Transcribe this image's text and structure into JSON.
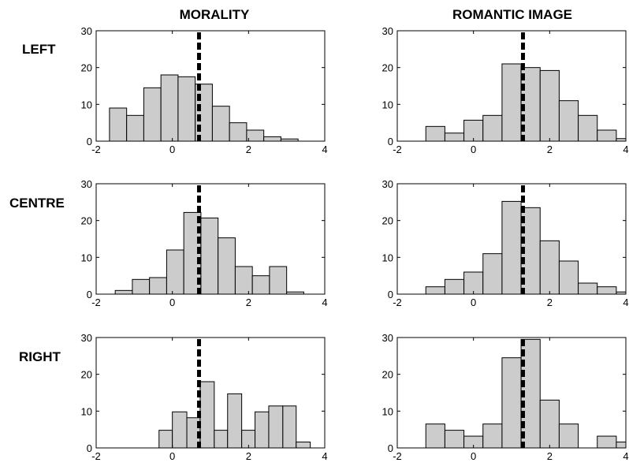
{
  "figure": {
    "column_titles": [
      "MORALITY",
      "ROMANTIC IMAGE"
    ],
    "row_labels": [
      "LEFT",
      "CENTRE",
      "RIGHT"
    ]
  },
  "colors": {
    "bar_fill": "#cccccc",
    "bar_stroke": "#000000",
    "reference_line": "#000000"
  },
  "chart_data": [
    {
      "type": "bar",
      "panel": "LEFT / MORALITY",
      "title": "",
      "xlabel": "",
      "ylabel": "",
      "xlim": [
        -2,
        4
      ],
      "ylim": [
        0,
        30
      ],
      "xticks": [
        -2,
        0,
        2,
        4
      ],
      "yticks": [
        0,
        10,
        20,
        30
      ],
      "reference_x": 0.7,
      "bins": [
        {
          "x0": -1.65,
          "x1": -1.2,
          "y": 9
        },
        {
          "x0": -1.2,
          "x1": -0.75,
          "y": 7
        },
        {
          "x0": -0.75,
          "x1": -0.3,
          "y": 14.5
        },
        {
          "x0": -0.3,
          "x1": 0.15,
          "y": 18
        },
        {
          "x0": 0.15,
          "x1": 0.6,
          "y": 17.5
        },
        {
          "x0": 0.6,
          "x1": 1.05,
          "y": 15.5
        },
        {
          "x0": 1.05,
          "x1": 1.5,
          "y": 9.5
        },
        {
          "x0": 1.5,
          "x1": 1.95,
          "y": 5
        },
        {
          "x0": 1.95,
          "x1": 2.4,
          "y": 3
        },
        {
          "x0": 2.4,
          "x1": 2.85,
          "y": 1.2
        },
        {
          "x0": 2.85,
          "x1": 3.3,
          "y": 0.6
        }
      ]
    },
    {
      "type": "bar",
      "panel": "LEFT / ROMANTIC IMAGE",
      "title": "",
      "xlabel": "",
      "ylabel": "",
      "xlim": [
        -2,
        4
      ],
      "ylim": [
        0,
        30
      ],
      "xticks": [
        -2,
        0,
        2,
        4
      ],
      "yticks": [
        0,
        10,
        20,
        30
      ],
      "reference_x": 1.3,
      "bins": [
        {
          "x0": -1.25,
          "x1": -0.75,
          "y": 4
        },
        {
          "x0": -0.75,
          "x1": -0.25,
          "y": 2.2
        },
        {
          "x0": -0.25,
          "x1": 0.25,
          "y": 5.7
        },
        {
          "x0": 0.25,
          "x1": 0.75,
          "y": 7
        },
        {
          "x0": 0.75,
          "x1": 1.25,
          "y": 21
        },
        {
          "x0": 1.25,
          "x1": 1.75,
          "y": 20
        },
        {
          "x0": 1.75,
          "x1": 2.25,
          "y": 19.2
        },
        {
          "x0": 2.25,
          "x1": 2.75,
          "y": 11
        },
        {
          "x0": 2.75,
          "x1": 3.25,
          "y": 7
        },
        {
          "x0": 3.25,
          "x1": 3.75,
          "y": 3
        },
        {
          "x0": 3.75,
          "x1": 4.25,
          "y": 0.7
        }
      ]
    },
    {
      "type": "bar",
      "panel": "CENTRE / MORALITY",
      "title": "",
      "xlabel": "",
      "ylabel": "",
      "xlim": [
        -2,
        4
      ],
      "ylim": [
        0,
        30
      ],
      "xticks": [
        -2,
        0,
        2,
        4
      ],
      "yticks": [
        0,
        10,
        20,
        30
      ],
      "reference_x": 0.7,
      "bins": [
        {
          "x0": -1.5,
          "x1": -1.05,
          "y": 1
        },
        {
          "x0": -1.05,
          "x1": -0.6,
          "y": 4
        },
        {
          "x0": -0.6,
          "x1": -0.15,
          "y": 4.5
        },
        {
          "x0": -0.15,
          "x1": 0.3,
          "y": 12
        },
        {
          "x0": 0.3,
          "x1": 0.75,
          "y": 22.2
        },
        {
          "x0": 0.75,
          "x1": 1.2,
          "y": 20.7
        },
        {
          "x0": 1.2,
          "x1": 1.65,
          "y": 15.3
        },
        {
          "x0": 1.65,
          "x1": 2.1,
          "y": 7.5
        },
        {
          "x0": 2.1,
          "x1": 2.55,
          "y": 5
        },
        {
          "x0": 2.55,
          "x1": 3.0,
          "y": 7.5
        },
        {
          "x0": 3.0,
          "x1": 3.45,
          "y": 0.6
        }
      ]
    },
    {
      "type": "bar",
      "panel": "CENTRE / ROMANTIC IMAGE",
      "title": "",
      "xlabel": "",
      "ylabel": "",
      "xlim": [
        -2,
        4
      ],
      "ylim": [
        0,
        30
      ],
      "xticks": [
        -2,
        0,
        2,
        4
      ],
      "yticks": [
        0,
        10,
        20,
        30
      ],
      "reference_x": 1.3,
      "bins": [
        {
          "x0": -1.25,
          "x1": -0.75,
          "y": 2
        },
        {
          "x0": -0.75,
          "x1": -0.25,
          "y": 4
        },
        {
          "x0": -0.25,
          "x1": 0.25,
          "y": 6
        },
        {
          "x0": 0.25,
          "x1": 0.75,
          "y": 11
        },
        {
          "x0": 0.75,
          "x1": 1.25,
          "y": 25.2
        },
        {
          "x0": 1.25,
          "x1": 1.75,
          "y": 23.5
        },
        {
          "x0": 1.75,
          "x1": 2.25,
          "y": 14.5
        },
        {
          "x0": 2.25,
          "x1": 2.75,
          "y": 9
        },
        {
          "x0": 2.75,
          "x1": 3.25,
          "y": 3
        },
        {
          "x0": 3.25,
          "x1": 3.75,
          "y": 2
        },
        {
          "x0": 3.75,
          "x1": 4.25,
          "y": 0.6
        }
      ]
    },
    {
      "type": "bar",
      "panel": "RIGHT / MORALITY",
      "title": "",
      "xlabel": "",
      "ylabel": "",
      "xlim": [
        -2,
        4
      ],
      "ylim": [
        0,
        30
      ],
      "xticks": [
        -2,
        0,
        2,
        4
      ],
      "yticks": [
        0,
        10,
        20,
        30
      ],
      "reference_x": 0.7,
      "bins": [
        {
          "x0": -0.35,
          "x1": 0.0,
          "y": 4.8
        },
        {
          "x0": 0.0,
          "x1": 0.38,
          "y": 9.8
        },
        {
          "x0": 0.38,
          "x1": 0.73,
          "y": 8.2
        },
        {
          "x0": 0.73,
          "x1": 1.1,
          "y": 18
        },
        {
          "x0": 1.1,
          "x1": 1.45,
          "y": 4.8
        },
        {
          "x0": 1.45,
          "x1": 1.82,
          "y": 14.7
        },
        {
          "x0": 1.82,
          "x1": 2.17,
          "y": 4.8
        },
        {
          "x0": 2.17,
          "x1": 2.53,
          "y": 9.8
        },
        {
          "x0": 2.53,
          "x1": 2.9,
          "y": 11.4
        },
        {
          "x0": 2.9,
          "x1": 3.25,
          "y": 11.4
        },
        {
          "x0": 3.25,
          "x1": 3.62,
          "y": 1.6
        }
      ]
    },
    {
      "type": "bar",
      "panel": "RIGHT / ROMANTIC IMAGE",
      "title": "",
      "xlabel": "",
      "ylabel": "",
      "xlim": [
        -2,
        4
      ],
      "ylim": [
        0,
        30
      ],
      "xticks": [
        -2,
        0,
        2,
        4
      ],
      "yticks": [
        0,
        10,
        20,
        30
      ],
      "reference_x": 1.3,
      "bins": [
        {
          "x0": -1.25,
          "x1": -0.75,
          "y": 6.5
        },
        {
          "x0": -0.75,
          "x1": -0.25,
          "y": 4.8
        },
        {
          "x0": -0.25,
          "x1": 0.25,
          "y": 3.2
        },
        {
          "x0": 0.25,
          "x1": 0.75,
          "y": 6.5
        },
        {
          "x0": 0.75,
          "x1": 1.25,
          "y": 24.5
        },
        {
          "x0": 1.25,
          "x1": 1.75,
          "y": 29.5
        },
        {
          "x0": 1.75,
          "x1": 2.25,
          "y": 13
        },
        {
          "x0": 2.25,
          "x1": 2.75,
          "y": 6.5
        },
        {
          "x0": 2.75,
          "x1": 3.25,
          "y": 0
        },
        {
          "x0": 3.25,
          "x1": 3.75,
          "y": 3.2
        },
        {
          "x0": 3.75,
          "x1": 4.25,
          "y": 1.6
        }
      ]
    }
  ]
}
